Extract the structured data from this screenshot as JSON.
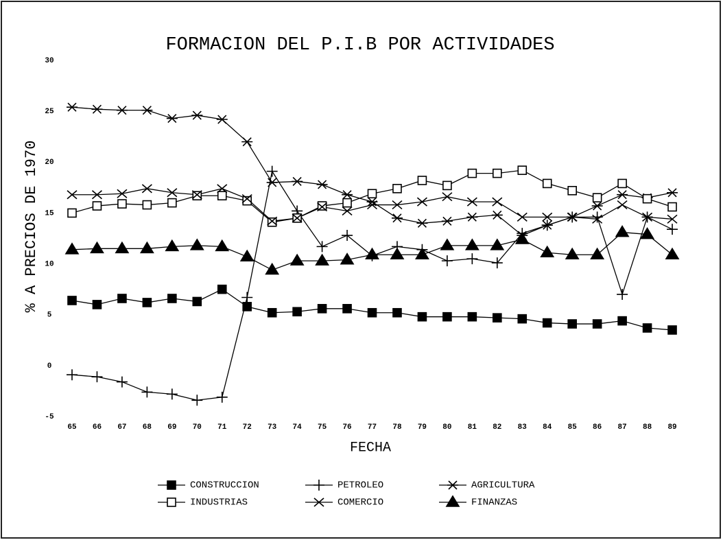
{
  "chart_data": {
    "type": "line",
    "title": "FORMACION DEL P.I.B POR ACTIVIDADES",
    "y_label": "% A PRECIOS DE 1970",
    "x_label": "FECHA",
    "categories": [
      "65",
      "66",
      "67",
      "68",
      "69",
      "70",
      "71",
      "72",
      "73",
      "74",
      "75",
      "76",
      "77",
      "78",
      "79",
      "80",
      "81",
      "82",
      "83",
      "84",
      "85",
      "86",
      "87",
      "88",
      "89"
    ],
    "ylim": [
      -5,
      30
    ],
    "yticks": [
      -5,
      0,
      5,
      10,
      15,
      20,
      25,
      30
    ],
    "grid": false,
    "legend": "bottom",
    "series": [
      {
        "name": "CONSTRUCCION",
        "color": "#000000",
        "marker": "filled-square",
        "values": [
          6.4,
          6.0,
          6.6,
          6.2,
          6.6,
          6.3,
          7.5,
          5.8,
          5.2,
          5.3,
          5.6,
          5.6,
          5.2,
          5.2,
          4.8,
          4.8,
          4.8,
          4.7,
          4.6,
          4.2,
          4.1,
          4.1,
          4.4,
          3.7,
          3.5
        ]
      },
      {
        "name": "PETROLEO",
        "color": "#000000",
        "marker": "plus",
        "values": [
          -0.9,
          -1.1,
          -1.6,
          -2.6,
          -2.8,
          -3.4,
          -3.1,
          6.7,
          19.1,
          15.2,
          11.7,
          12.8,
          10.8,
          11.7,
          11.4,
          10.3,
          10.5,
          10.1,
          13.0,
          13.8,
          14.6,
          14.6,
          7.0,
          14.6,
          13.4
        ]
      },
      {
        "name": "AGRICULTURA",
        "color": "#000000",
        "marker": "asterisk",
        "values": [
          25.4,
          25.2,
          25.1,
          25.1,
          24.3,
          24.6,
          24.2,
          22.0,
          18.0,
          18.1,
          17.8,
          16.8,
          16.1,
          14.5,
          14.0,
          14.2,
          14.6,
          14.8,
          12.8,
          13.8,
          14.6,
          15.7,
          16.8,
          16.5,
          17.0
        ]
      },
      {
        "name": "INDUSTRIAS",
        "color": "#000000",
        "marker": "open-square",
        "values": [
          15.0,
          15.7,
          15.9,
          15.8,
          16.0,
          16.7,
          16.7,
          16.2,
          14.1,
          14.5,
          15.7,
          16.0,
          16.9,
          17.4,
          18.2,
          17.7,
          18.9,
          18.9,
          19.2,
          17.9,
          17.2,
          16.5,
          17.9,
          16.4,
          15.6
        ]
      },
      {
        "name": "COMERCIO",
        "color": "#000000",
        "marker": "cross",
        "values": [
          16.8,
          16.8,
          16.9,
          17.4,
          17.0,
          16.8,
          17.4,
          16.4,
          14.2,
          14.5,
          15.6,
          15.2,
          15.8,
          15.8,
          16.1,
          16.6,
          16.1,
          16.1,
          14.6,
          14.6,
          14.6,
          14.4,
          15.8,
          14.6,
          14.4
        ]
      },
      {
        "name": "FINANZAS",
        "color": "#000000",
        "marker": "filled-triangle",
        "values": [
          11.4,
          11.5,
          11.5,
          11.5,
          11.7,
          11.8,
          11.7,
          10.7,
          9.4,
          10.3,
          10.3,
          10.4,
          10.9,
          10.9,
          10.9,
          11.8,
          11.8,
          11.8,
          12.4,
          11.1,
          10.9,
          10.9,
          13.1,
          12.9,
          10.9
        ]
      }
    ]
  }
}
